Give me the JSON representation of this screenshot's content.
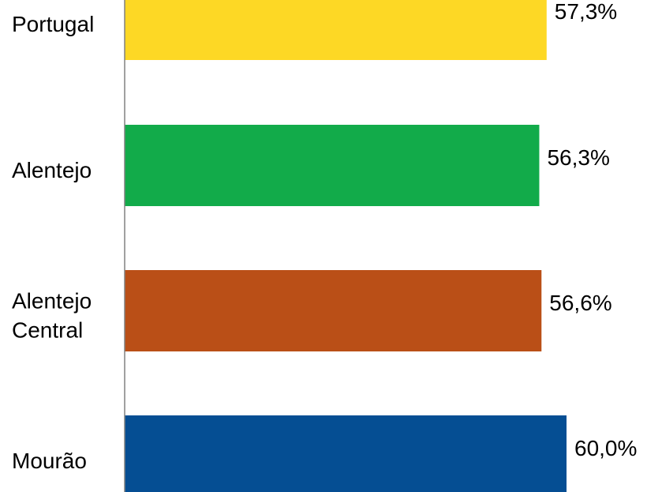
{
  "chart_data": {
    "type": "bar",
    "orientation": "horizontal",
    "categories": [
      [
        "Portugal"
      ],
      [
        "Alentejo"
      ],
      [
        "Alentejo",
        "Central"
      ],
      [
        "Mourão"
      ]
    ],
    "values": [
      57.3,
      56.3,
      56.6,
      60.0
    ],
    "value_labels": [
      "57,3%",
      "56,3%",
      "56,6%",
      "60,0%"
    ],
    "colors": [
      "#FDD825",
      "#12AB4A",
      "#BA4F17",
      "#054E93"
    ],
    "axis_color": "#808080",
    "grid": false,
    "legend": "none"
  }
}
